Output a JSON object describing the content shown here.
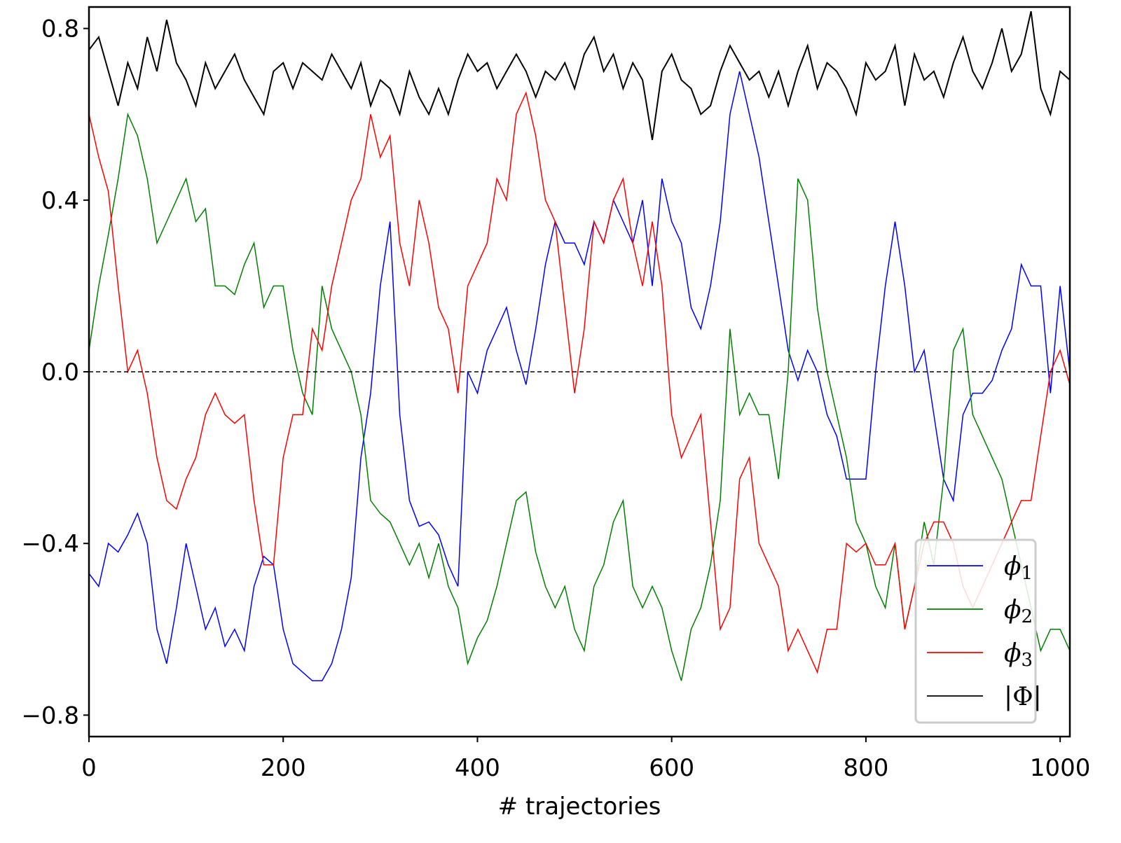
{
  "chart_data": {
    "type": "line",
    "title": "",
    "xlabel": "# trajectories",
    "ylabel": "",
    "xlim": [
      0,
      1010
    ],
    "ylim": [
      -0.85,
      0.85
    ],
    "grid": false,
    "xticks": [
      "0",
      "200",
      "400",
      "600",
      "800",
      "1000"
    ],
    "xtick_values": [
      0,
      200,
      400,
      600,
      800,
      1000
    ],
    "yticks": [
      "0.8",
      "0.4",
      "0.0",
      "−0.4",
      "−0.8"
    ],
    "ytick_values": [
      0.8,
      0.4,
      0.0,
      -0.4,
      -0.8
    ],
    "reference_line": {
      "y": 0.0,
      "style": "dashed",
      "color": "#000000"
    },
    "legend_placement": "lower-right",
    "x": [
      0,
      10,
      20,
      30,
      40,
      50,
      60,
      70,
      80,
      90,
      100,
      110,
      120,
      130,
      140,
      150,
      160,
      170,
      180,
      190,
      200,
      210,
      220,
      230,
      240,
      250,
      260,
      270,
      280,
      290,
      300,
      310,
      320,
      330,
      340,
      350,
      360,
      370,
      380,
      390,
      400,
      410,
      420,
      430,
      440,
      450,
      460,
      470,
      480,
      490,
      500,
      510,
      520,
      530,
      540,
      550,
      560,
      570,
      580,
      590,
      600,
      610,
      620,
      630,
      640,
      650,
      660,
      670,
      680,
      690,
      700,
      710,
      720,
      730,
      740,
      750,
      760,
      770,
      780,
      790,
      800,
      810,
      820,
      830,
      840,
      850,
      860,
      870,
      880,
      890,
      900,
      910,
      920,
      930,
      940,
      950,
      960,
      970,
      980,
      990,
      1000,
      1010
    ],
    "series": [
      {
        "name": "ϕ₁",
        "label_main": "ϕ",
        "label_sub": "1",
        "color": "#0000ff",
        "values": [
          -0.47,
          -0.5,
          -0.4,
          -0.42,
          -0.38,
          -0.33,
          -0.4,
          -0.6,
          -0.68,
          -0.55,
          -0.4,
          -0.5,
          -0.6,
          -0.55,
          -0.64,
          -0.6,
          -0.65,
          -0.5,
          -0.43,
          -0.45,
          -0.6,
          -0.68,
          -0.7,
          -0.72,
          -0.72,
          -0.68,
          -0.6,
          -0.48,
          -0.2,
          -0.05,
          0.2,
          0.35,
          -0.1,
          -0.3,
          -0.36,
          -0.35,
          -0.38,
          -0.45,
          -0.5,
          0.0,
          -0.05,
          0.05,
          0.1,
          0.15,
          0.05,
          -0.03,
          0.1,
          0.25,
          0.35,
          0.3,
          0.3,
          0.25,
          0.35,
          0.3,
          0.4,
          0.35,
          0.3,
          0.4,
          0.2,
          0.45,
          0.35,
          0.3,
          0.15,
          0.1,
          0.2,
          0.35,
          0.6,
          0.7,
          0.6,
          0.5,
          0.35,
          0.2,
          0.05,
          -0.02,
          0.05,
          0.0,
          -0.1,
          -0.15,
          -0.25,
          -0.25,
          -0.25,
          0.0,
          0.2,
          0.35,
          0.2,
          0.0,
          0.05,
          -0.1,
          -0.25,
          -0.3,
          -0.1,
          -0.05,
          -0.05,
          -0.02,
          0.05,
          0.1,
          0.25,
          0.2,
          0.2,
          -0.05,
          0.2,
          0.0
        ]
      },
      {
        "name": "ϕ₂",
        "label_main": "ϕ",
        "label_sub": "2",
        "color": "#008000",
        "values": [
          0.05,
          0.2,
          0.32,
          0.45,
          0.6,
          0.55,
          0.45,
          0.3,
          0.35,
          0.4,
          0.45,
          0.35,
          0.38,
          0.2,
          0.2,
          0.18,
          0.25,
          0.3,
          0.15,
          0.2,
          0.2,
          0.05,
          -0.05,
          -0.1,
          0.2,
          0.1,
          0.05,
          0.0,
          -0.1,
          -0.3,
          -0.33,
          -0.35,
          -0.4,
          -0.45,
          -0.4,
          -0.48,
          -0.4,
          -0.5,
          -0.55,
          -0.68,
          -0.62,
          -0.58,
          -0.5,
          -0.4,
          -0.3,
          -0.28,
          -0.42,
          -0.5,
          -0.55,
          -0.5,
          -0.6,
          -0.65,
          -0.5,
          -0.45,
          -0.35,
          -0.3,
          -0.5,
          -0.55,
          -0.5,
          -0.55,
          -0.65,
          -0.72,
          -0.6,
          -0.55,
          -0.45,
          -0.3,
          0.1,
          -0.1,
          -0.05,
          -0.1,
          -0.1,
          -0.25,
          0.0,
          0.45,
          0.4,
          0.15,
          0.0,
          -0.1,
          -0.2,
          -0.35,
          -0.4,
          -0.5,
          -0.55,
          -0.4,
          -0.6,
          -0.5,
          -0.35,
          -0.45,
          -0.25,
          0.05,
          0.1,
          -0.1,
          -0.15,
          -0.2,
          -0.25,
          -0.35,
          -0.45,
          -0.55,
          -0.65,
          -0.6,
          -0.6,
          -0.65
        ]
      },
      {
        "name": "ϕ₃",
        "label_main": "ϕ",
        "label_sub": "3",
        "color": "#ff0000",
        "values": [
          0.6,
          0.5,
          0.42,
          0.2,
          0.0,
          0.05,
          -0.05,
          -0.2,
          -0.3,
          -0.32,
          -0.25,
          -0.2,
          -0.1,
          -0.05,
          -0.1,
          -0.12,
          -0.1,
          -0.3,
          -0.45,
          -0.45,
          -0.2,
          -0.1,
          -0.1,
          0.1,
          0.05,
          0.2,
          0.3,
          0.4,
          0.45,
          0.6,
          0.5,
          0.55,
          0.3,
          0.2,
          0.4,
          0.3,
          0.15,
          0.1,
          -0.05,
          0.2,
          0.25,
          0.3,
          0.45,
          0.4,
          0.6,
          0.65,
          0.55,
          0.4,
          0.35,
          0.15,
          -0.05,
          0.1,
          0.35,
          0.3,
          0.4,
          0.45,
          0.3,
          0.2,
          0.35,
          0.2,
          -0.1,
          -0.2,
          -0.15,
          -0.1,
          -0.35,
          -0.6,
          -0.55,
          -0.25,
          -0.2,
          -0.4,
          -0.45,
          -0.5,
          -0.65,
          -0.6,
          -0.65,
          -0.7,
          -0.6,
          -0.6,
          -0.4,
          -0.42,
          -0.4,
          -0.45,
          -0.45,
          -0.4,
          -0.6,
          -0.5,
          -0.4,
          -0.35,
          -0.35,
          -0.4,
          -0.5,
          -0.55,
          -0.5,
          -0.45,
          -0.4,
          -0.35,
          -0.3,
          -0.3,
          -0.15,
          0.0,
          0.05,
          -0.03
        ]
      },
      {
        "name": "|Φ|",
        "label_main": "|Φ|",
        "label_sub": "",
        "color": "#000000",
        "values": [
          0.75,
          0.78,
          0.7,
          0.62,
          0.72,
          0.66,
          0.78,
          0.7,
          0.82,
          0.72,
          0.68,
          0.62,
          0.72,
          0.66,
          0.7,
          0.74,
          0.68,
          0.64,
          0.6,
          0.7,
          0.72,
          0.66,
          0.72,
          0.7,
          0.68,
          0.74,
          0.7,
          0.66,
          0.72,
          0.62,
          0.68,
          0.66,
          0.6,
          0.7,
          0.64,
          0.6,
          0.66,
          0.6,
          0.68,
          0.74,
          0.7,
          0.72,
          0.66,
          0.7,
          0.74,
          0.7,
          0.64,
          0.7,
          0.68,
          0.72,
          0.66,
          0.74,
          0.78,
          0.7,
          0.74,
          0.66,
          0.72,
          0.68,
          0.54,
          0.7,
          0.74,
          0.68,
          0.66,
          0.6,
          0.62,
          0.7,
          0.76,
          0.72,
          0.68,
          0.7,
          0.64,
          0.7,
          0.62,
          0.7,
          0.76,
          0.66,
          0.72,
          0.7,
          0.66,
          0.6,
          0.72,
          0.68,
          0.7,
          0.76,
          0.62,
          0.74,
          0.68,
          0.7,
          0.64,
          0.72,
          0.78,
          0.7,
          0.66,
          0.72,
          0.8,
          0.7,
          0.74,
          0.84,
          0.66,
          0.6,
          0.7,
          0.68
        ]
      }
    ]
  }
}
